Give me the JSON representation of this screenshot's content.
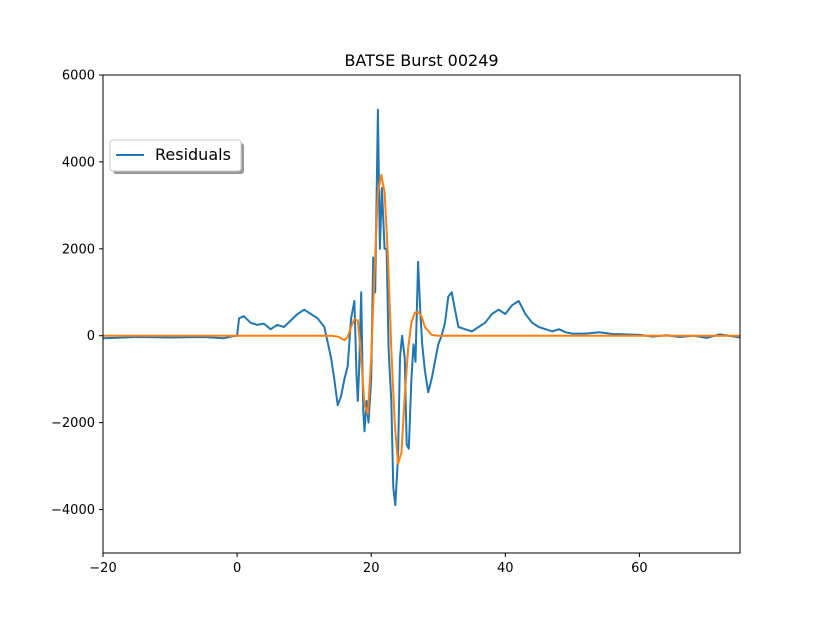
{
  "chart_data": {
    "type": "line",
    "title": "BATSE Burst 00249",
    "xlabel": "",
    "ylabel": "",
    "xlim": [
      -20,
      75
    ],
    "ylim": [
      -5000,
      6000
    ],
    "xticks": [
      -20,
      0,
      20,
      40,
      60
    ],
    "yticks": [
      -4000,
      -2000,
      0,
      2000,
      4000,
      6000
    ],
    "xtick_labels": [
      "−20",
      "0",
      "20",
      "40",
      "60"
    ],
    "ytick_labels": [
      "−4000",
      "−2000",
      "0",
      "2000",
      "4000",
      "6000"
    ],
    "grid": false,
    "legend": {
      "placement": "upper-left",
      "entries": [
        "Residuals"
      ]
    },
    "series": [
      {
        "name": "Residuals",
        "color": "#1f77b4",
        "x": [
          -20,
          -15,
          -10,
          -5,
          -2,
          -1,
          0,
          0.3,
          1,
          2,
          3,
          4,
          5,
          6,
          7,
          8,
          9,
          10,
          11,
          12,
          13,
          14,
          14.5,
          15,
          15.5,
          16,
          16.5,
          17,
          17.5,
          17.8,
          18,
          18.2,
          18.5,
          18.8,
          19,
          19.3,
          19.6,
          20,
          20.3,
          20.6,
          21,
          21.3,
          21.6,
          22,
          22.3,
          22.6,
          23,
          23.3,
          23.6,
          24,
          24.3,
          24.6,
          25,
          25.3,
          25.6,
          26,
          26.3,
          26.6,
          27,
          27.3,
          27.6,
          28,
          28.5,
          29,
          29.5,
          30,
          30.5,
          31,
          31.5,
          32,
          32.5,
          33,
          34,
          35,
          36,
          37,
          38,
          39,
          40,
          41,
          42,
          43,
          44,
          45,
          46,
          47,
          48,
          49,
          50,
          52,
          54,
          56,
          58,
          60,
          62,
          64,
          66,
          68,
          70,
          72,
          75
        ],
        "y": [
          -60,
          -30,
          -40,
          -30,
          -60,
          -20,
          0,
          400,
          450,
          300,
          250,
          280,
          150,
          250,
          200,
          350,
          500,
          600,
          500,
          400,
          200,
          -500,
          -1000,
          -1600,
          -1400,
          -1000,
          -700,
          400,
          800,
          -900,
          -1500,
          -800,
          1000,
          -1700,
          -2200,
          -1500,
          -2000,
          -1000,
          1800,
          1000,
          5200,
          2000,
          3400,
          2000,
          2000,
          -300,
          -1500,
          -3500,
          -3900,
          -2800,
          -500,
          0,
          -500,
          -2500,
          -2600,
          -1000,
          -200,
          -600,
          1700,
          600,
          -200,
          -800,
          -1300,
          -1000,
          -600,
          -200,
          0,
          300,
          900,
          1000,
          600,
          200,
          150,
          100,
          200,
          300,
          500,
          600,
          500,
          700,
          800,
          500,
          300,
          200,
          150,
          100,
          150,
          80,
          50,
          50,
          80,
          40,
          30,
          20,
          -20,
          10,
          -30,
          0,
          -50,
          30,
          -40
        ]
      },
      {
        "name": "",
        "color": "#ff7f0e",
        "x": [
          -20,
          0,
          10,
          14,
          15,
          16,
          16.5,
          17,
          17.5,
          18,
          18.5,
          19,
          19.5,
          20,
          20.5,
          21,
          21.5,
          22,
          22.5,
          23,
          23.5,
          24,
          24.5,
          25,
          25.5,
          26,
          26.5,
          27,
          27.5,
          28,
          29,
          30,
          40,
          50,
          60,
          75
        ],
        "y": [
          0,
          0,
          0,
          0,
          -20,
          -100,
          -30,
          200,
          380,
          350,
          -500,
          -1600,
          -1800,
          -500,
          1500,
          3300,
          3700,
          3300,
          1800,
          -300,
          -2000,
          -2950,
          -2700,
          -1400,
          -300,
          300,
          530,
          550,
          450,
          200,
          20,
          0,
          0,
          0,
          0,
          0
        ]
      }
    ]
  }
}
